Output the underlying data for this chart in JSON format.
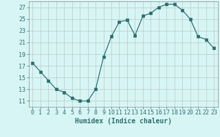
{
  "x": [
    0,
    1,
    2,
    3,
    4,
    5,
    6,
    7,
    8,
    9,
    10,
    11,
    12,
    13,
    14,
    15,
    16,
    17,
    18,
    19,
    20,
    21,
    22,
    23
  ],
  "y": [
    17.5,
    16.0,
    14.5,
    13.0,
    12.5,
    11.5,
    11.0,
    11.0,
    13.0,
    18.5,
    22.0,
    24.5,
    24.8,
    22.2,
    25.5,
    26.0,
    27.0,
    27.5,
    27.5,
    26.5,
    25.0,
    22.0,
    21.5,
    20.0
  ],
  "xlabel": "Humidex (Indice chaleur)",
  "xlim": [
    -0.5,
    23.5
  ],
  "ylim": [
    10,
    28
  ],
  "yticks": [
    11,
    13,
    15,
    17,
    19,
    21,
    23,
    25,
    27
  ],
  "xticks": [
    0,
    1,
    2,
    3,
    4,
    5,
    6,
    7,
    8,
    9,
    10,
    11,
    12,
    13,
    14,
    15,
    16,
    17,
    18,
    19,
    20,
    21,
    22,
    23
  ],
  "line_color": "#2d6e6e",
  "marker": "s",
  "marker_size": 2.2,
  "bg_color": "#d8f5f5",
  "grid_color": "#b8c8c8",
  "xlabel_fontsize": 7,
  "tick_fontsize": 6
}
